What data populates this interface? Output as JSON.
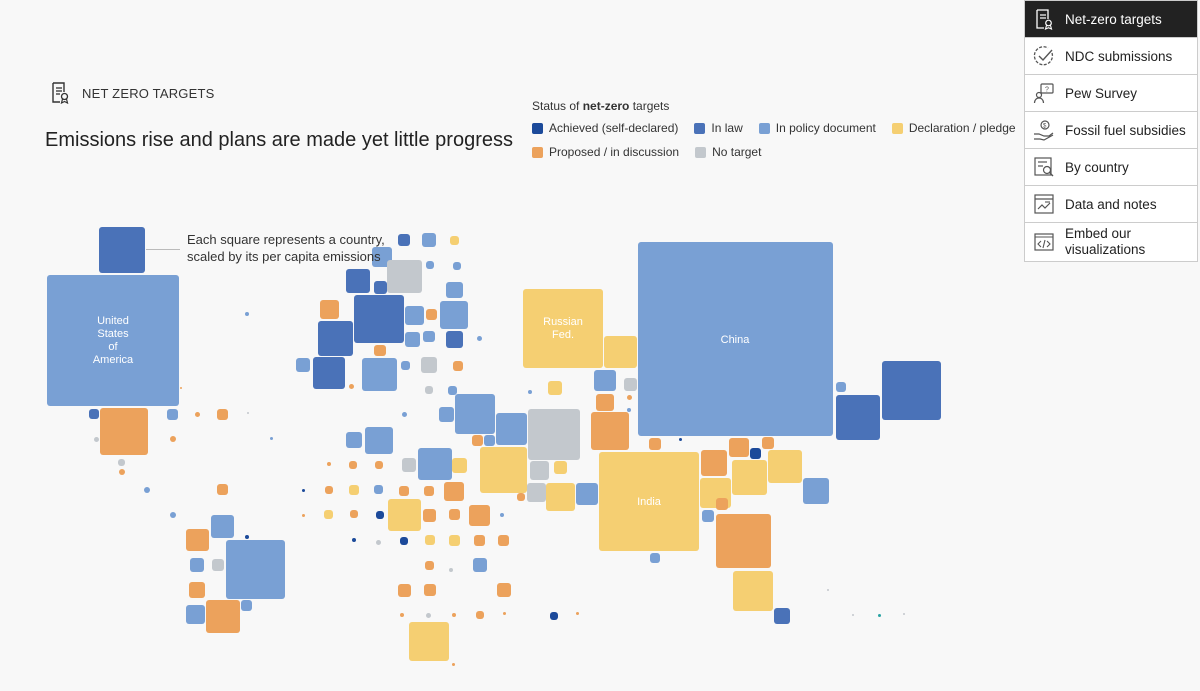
{
  "section": {
    "label": "NET ZERO TARGETS",
    "icon": "document-certificate-icon"
  },
  "headline": "Emissions rise and plans are made yet little progress",
  "legend": {
    "title_prefix": "Status of ",
    "title_bold": "net-zero",
    "title_suffix": " targets",
    "items": [
      {
        "label": "Achieved (self-declared)",
        "color": "#1c4a9a"
      },
      {
        "label": "In law",
        "color": "#4a72b8"
      },
      {
        "label": "In policy document",
        "color": "#79a0d4"
      },
      {
        "label": "Declaration / pledge",
        "color": "#f5cf72"
      },
      {
        "label": "Proposed / in discussion",
        "color": "#eca25c"
      },
      {
        "label": "No target",
        "color": "#c3c8cd"
      }
    ]
  },
  "annotation": {
    "line1": "Each square represents a country,",
    "line2": "scaled by its per capita emissions"
  },
  "countries": {
    "usa": {
      "l1": "United",
      "l2": "States",
      "l3": "of",
      "l4": "America"
    },
    "russia": {
      "l1": "Russian",
      "l2": "Fed."
    },
    "china": "China",
    "india": "India"
  },
  "nav": [
    {
      "label": "Net-zero targets",
      "icon": "document-certificate-icon",
      "active": true
    },
    {
      "label": "NDC submissions",
      "icon": "check-circle-icon"
    },
    {
      "label": "Pew Survey",
      "icon": "survey-chat-icon"
    },
    {
      "label": "Fossil fuel subsidies",
      "icon": "hand-money-icon"
    },
    {
      "label": "By country",
      "icon": "search-list-icon"
    },
    {
      "label": "Data and notes",
      "icon": "data-chart-icon"
    },
    {
      "label": "Embed our",
      "label2": "visualizations",
      "icon": "code-embed-icon"
    }
  ]
}
